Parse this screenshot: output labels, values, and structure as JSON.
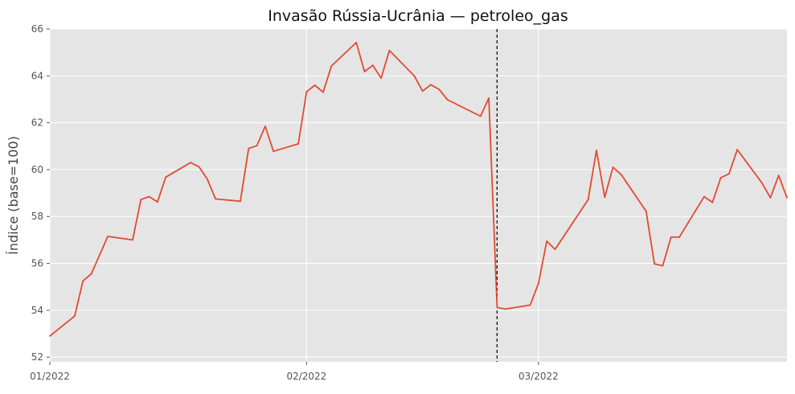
{
  "chart_data": {
    "type": "line",
    "title": "Invasão Rússia-Ucrânia — petroleo_gas",
    "xlabel": "",
    "ylabel": "Índice (base=100)",
    "ylim": [
      51.8,
      66
    ],
    "xlim": [
      "2022-01-01",
      "2022-03-31"
    ],
    "grid": true,
    "x_ticks": [
      {
        "date": "2022-01-01",
        "label": "01/2022"
      },
      {
        "date": "2022-02-01",
        "label": "02/2022"
      },
      {
        "date": "2022-03-01",
        "label": "03/2022"
      }
    ],
    "y_ticks": [
      52,
      54,
      56,
      58,
      60,
      62,
      64,
      66
    ],
    "event_line": {
      "date": "2022-02-24",
      "style": "dashed",
      "color": "#000000"
    },
    "series": [
      {
        "color": "#E24A33",
        "points": [
          [
            "2022-01-01",
            52.9
          ],
          [
            "2022-01-05",
            53.75
          ],
          [
            "2022-01-04",
            53.75
          ],
          [
            "2022-01-04",
            53.75
          ],
          [
            "2022-01-05",
            53.75
          ],
          [
            "2022-01-04",
            53.75
          ]
        ]
      }
    ]
  }
}
